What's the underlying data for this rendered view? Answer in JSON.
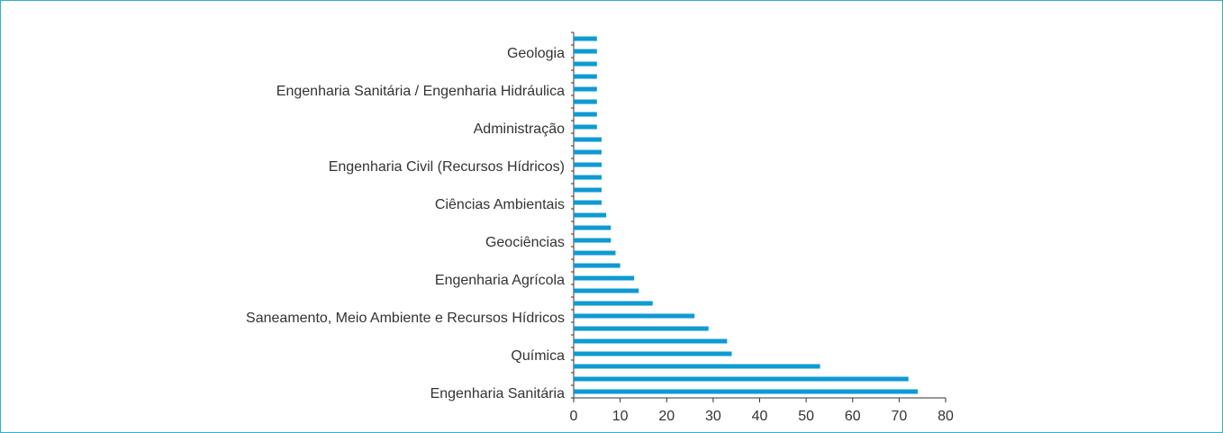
{
  "chart_data": {
    "type": "hbar",
    "categories": [
      "Engenharia Sanitária",
      null,
      null,
      "Química",
      null,
      null,
      "Saneamento, Meio Ambiente e Recursos Hídricos",
      null,
      null,
      "Engenharia Agrícola",
      null,
      null,
      "Geociências",
      null,
      null,
      "Ciências Ambientais",
      null,
      null,
      "Engenharia Civil (Recursos Hídricos)",
      null,
      null,
      "Administração",
      null,
      null,
      "Engenharia Sanitária / Engenharia Hidráulica",
      null,
      null,
      "Geologia",
      null
    ],
    "values": [
      74,
      72,
      53,
      34,
      33,
      29,
      26,
      17,
      14,
      13,
      10,
      9,
      8,
      8,
      7,
      6,
      6,
      6,
      6,
      6,
      6,
      5,
      5,
      5,
      5,
      5,
      5,
      5,
      5
    ],
    "color": "#0e9ad3",
    "xlim": [
      0,
      80
    ],
    "xticks": [
      0,
      10,
      20,
      30,
      40,
      50,
      60,
      70,
      80
    ]
  }
}
